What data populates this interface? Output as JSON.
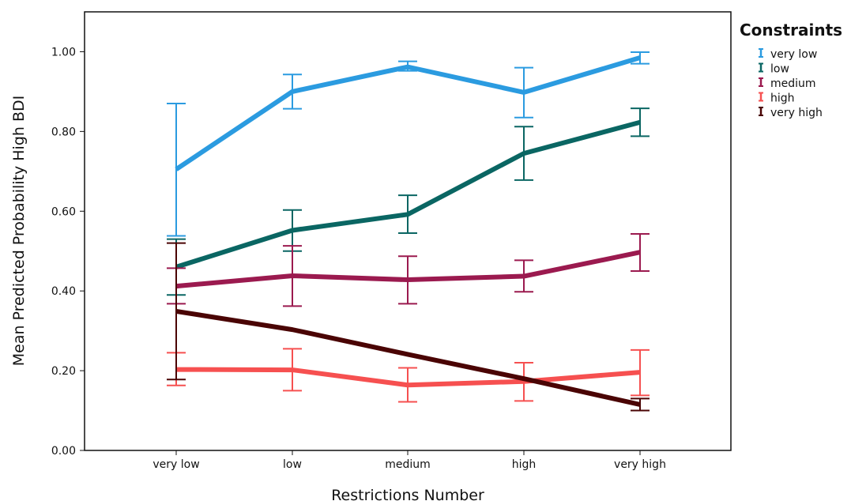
{
  "chart_data": {
    "type": "line",
    "xlabel": "Restrictions Number",
    "ylabel": "Mean Predicted Probability High BDI",
    "categories": [
      "very low",
      "low",
      "medium",
      "high",
      "very high"
    ],
    "ylim": [
      0,
      1.1
    ],
    "yticks": [
      "0.00",
      "0.20",
      "0.40",
      "0.60",
      "0.80",
      "1.00"
    ],
    "error_bars": true,
    "legend": {
      "title": "Constraints",
      "position": "outside-right-top"
    },
    "series": [
      {
        "name": "very low",
        "color": "#2b9be0",
        "values": [
          0.705,
          0.9,
          0.962,
          0.898,
          0.985
        ],
        "lower": [
          0.538,
          0.857,
          0.952,
          0.835,
          0.97
        ],
        "upper": [
          0.87,
          0.943,
          0.976,
          0.96,
          0.999
        ]
      },
      {
        "name": "low",
        "color": "#0a6663",
        "values": [
          0.46,
          0.552,
          0.592,
          0.745,
          0.823
        ],
        "lower": [
          0.39,
          0.5,
          0.545,
          0.678,
          0.788
        ],
        "upper": [
          0.53,
          0.603,
          0.64,
          0.812,
          0.858
        ]
      },
      {
        "name": "medium",
        "color": "#9b1a4f",
        "values": [
          0.412,
          0.438,
          0.428,
          0.437,
          0.497
        ],
        "lower": [
          0.368,
          0.362,
          0.368,
          0.398,
          0.45
        ],
        "upper": [
          0.457,
          0.513,
          0.487,
          0.477,
          0.543
        ]
      },
      {
        "name": "high",
        "color": "#f65050",
        "values": [
          0.203,
          0.202,
          0.164,
          0.173,
          0.196
        ],
        "lower": [
          0.163,
          0.15,
          0.122,
          0.124,
          0.138
        ],
        "upper": [
          0.245,
          0.255,
          0.207,
          0.22,
          0.252
        ]
      },
      {
        "name": "very high",
        "color": "#4a0404",
        "values": [
          0.349,
          0.303,
          0.241,
          0.18,
          0.115
        ],
        "lower": [
          0.178,
          null,
          null,
          null,
          0.1
        ],
        "upper": [
          0.52,
          null,
          null,
          null,
          0.13
        ]
      }
    ]
  }
}
